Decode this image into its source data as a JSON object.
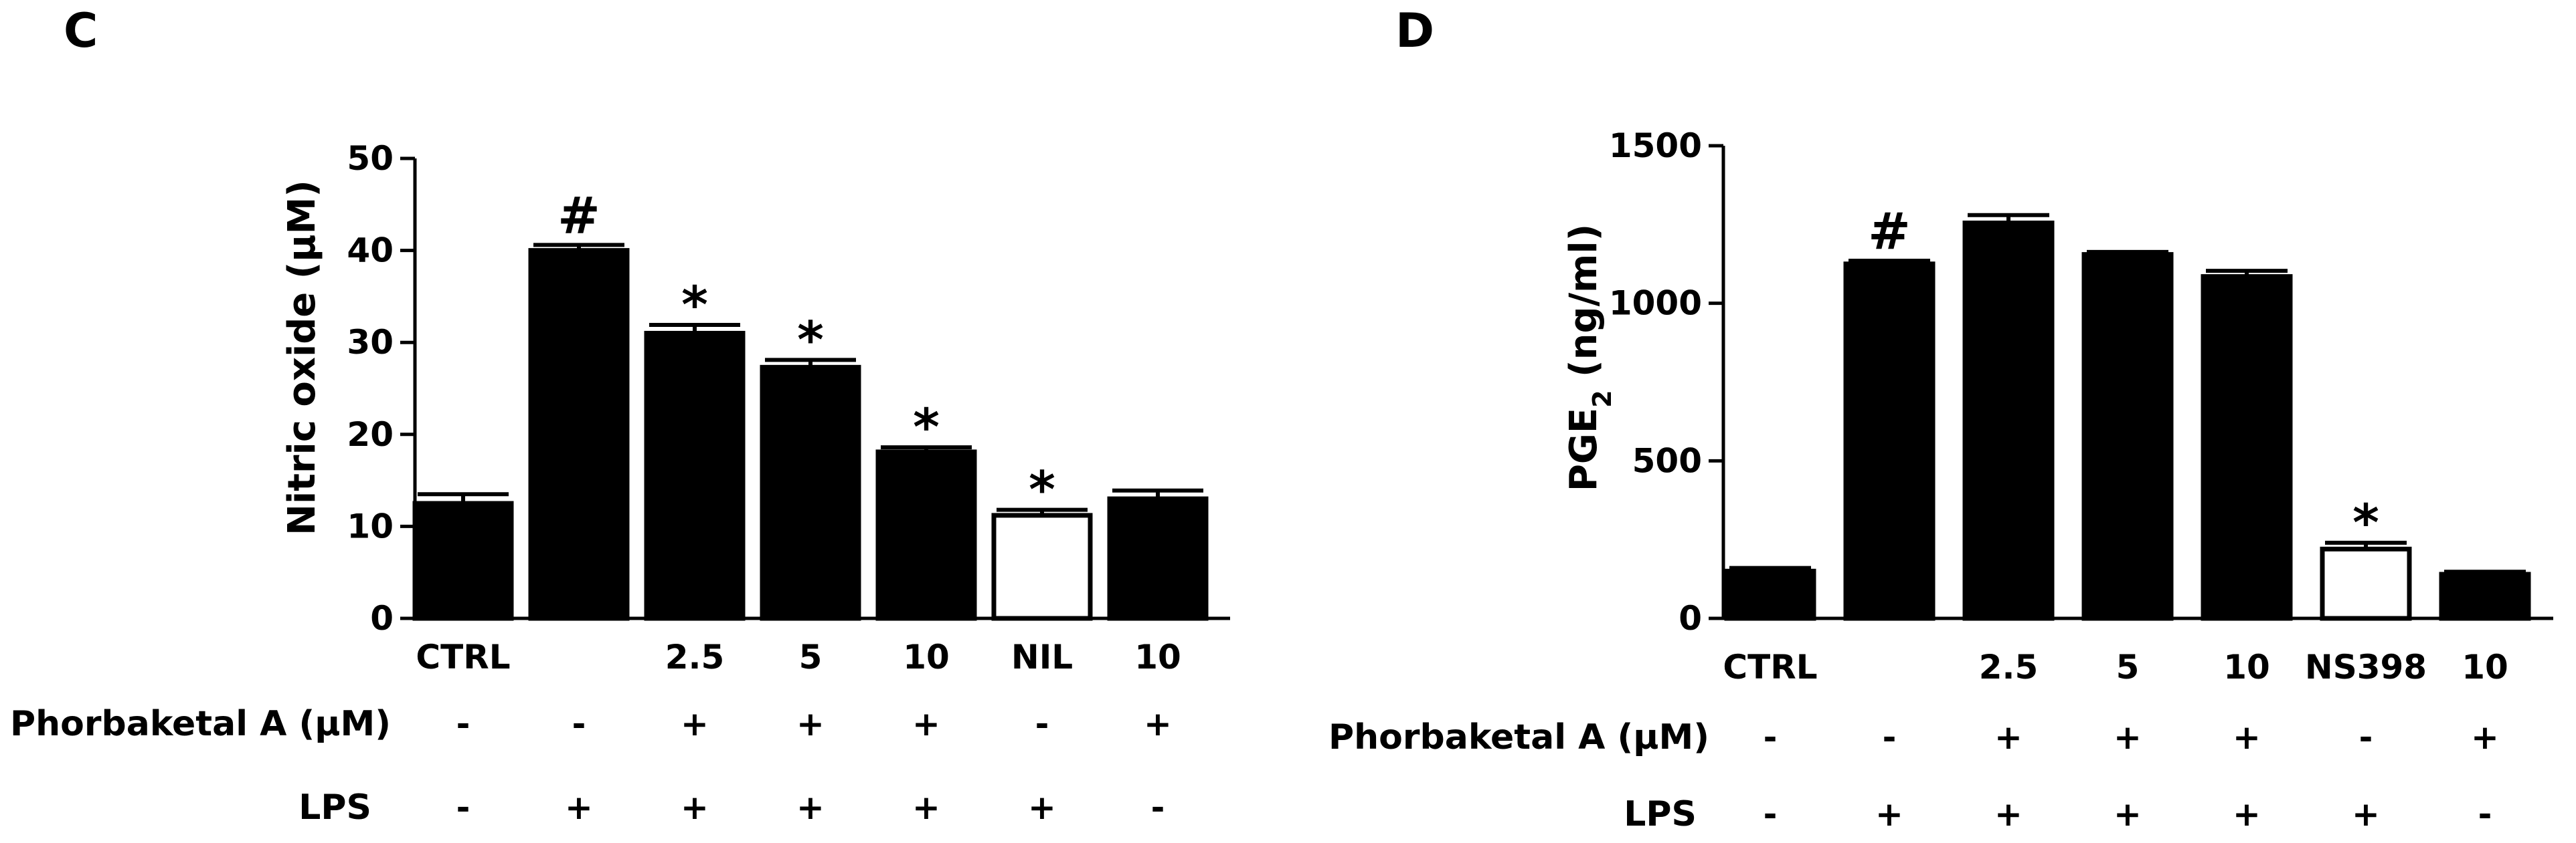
{
  "chart_data": [
    {
      "panel": "C",
      "type": "bar",
      "ylabel": "Nitric oxide (μM)",
      "ylim": [
        0,
        50
      ],
      "yticks": [
        0,
        10,
        20,
        30,
        40,
        50
      ],
      "categories": [
        "CTRL",
        "",
        "2.5",
        "5",
        "10",
        "NIL",
        "10"
      ],
      "values": [
        12.5,
        40.0,
        31.0,
        27.3,
        18.1,
        11.2,
        13.0
      ],
      "errors": [
        1.0,
        0.6,
        0.9,
        0.8,
        0.5,
        0.6,
        0.9
      ],
      "fills": [
        "#000000",
        "#000000",
        "#000000",
        "#000000",
        "#000000",
        "#ffffff",
        "#000000"
      ],
      "significance": [
        "",
        "#",
        "*",
        "*",
        "*",
        "*",
        ""
      ],
      "rows": [
        {
          "label": "Phorbaketal A (μM)",
          "signs": [
            "-",
            "-",
            "+",
            "+",
            "+",
            "-",
            "+"
          ]
        },
        {
          "label": "LPS",
          "signs": [
            "-",
            "+",
            "+",
            "+",
            "+",
            "+",
            "-"
          ]
        }
      ]
    },
    {
      "panel": "D",
      "type": "bar",
      "ylabel_main": "PGE",
      "ylabel_sub": "2",
      "ylabel_rest": " (ng/ml)",
      "ylim": [
        0,
        1500
      ],
      "yticks": [
        0,
        500,
        1000,
        1500
      ],
      "categories": [
        "CTRL",
        "",
        "2.5",
        "5",
        "10",
        "NS398",
        "10"
      ],
      "values": [
        150,
        1125,
        1255,
        1155,
        1085,
        220,
        140
      ],
      "errors": [
        10,
        10,
        25,
        8,
        18,
        20,
        8
      ],
      "fills": [
        "#000000",
        "#000000",
        "#000000",
        "#000000",
        "#000000",
        "#ffffff",
        "#000000"
      ],
      "significance": [
        "",
        "#",
        "",
        "",
        "",
        "*",
        ""
      ],
      "rows": [
        {
          "label": "Phorbaketal A (μM)",
          "signs": [
            "-",
            "-",
            "+",
            "+",
            "+",
            "-",
            "+"
          ]
        },
        {
          "label": "LPS",
          "signs": [
            "-",
            "+",
            "+",
            "+",
            "+",
            "+",
            "-"
          ]
        }
      ]
    }
  ]
}
